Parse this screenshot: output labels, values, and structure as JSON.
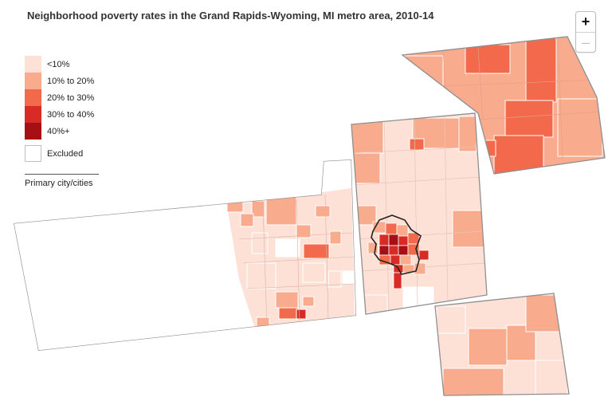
{
  "title": "Neighborhood poverty rates in the Grand Rapids-Wyoming, MI metro area, 2010-14",
  "zoom": {
    "in_label": "+",
    "out_label": "–"
  },
  "legend": {
    "items": [
      {
        "label": "<10%",
        "color": "#fde0d6"
      },
      {
        "label": "10% to 20%",
        "color": "#f9ab8e"
      },
      {
        "label": "20% to 30%",
        "color": "#f26a4b"
      },
      {
        "label": "30% to 40%",
        "color": "#d92b26"
      },
      {
        "label": "40%+",
        "color": "#a50f15"
      }
    ],
    "excluded_label": "Excluded",
    "primary_label": "Primary city/cities"
  },
  "colors": {
    "excluded": "#ffffff",
    "county_border": "#8f8f8f",
    "tract_border": "#ffffff",
    "city_outline": "#222222"
  }
}
